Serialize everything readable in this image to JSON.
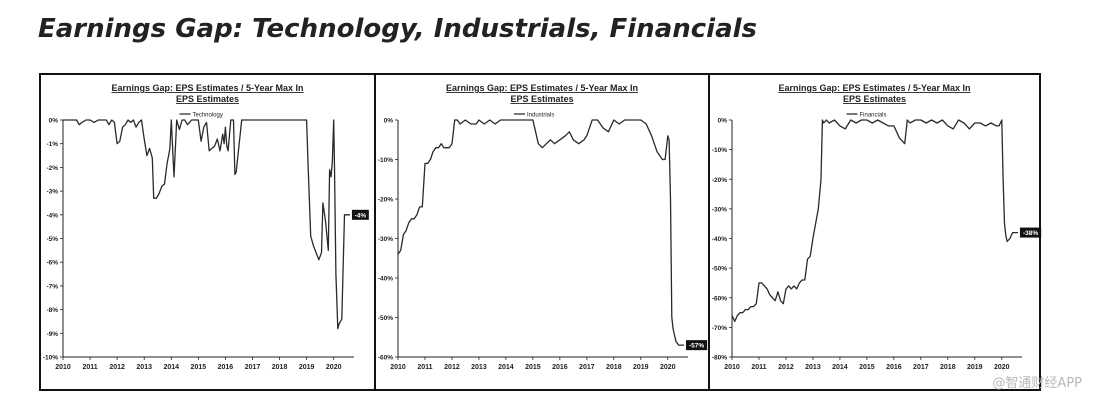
{
  "page": {
    "title": "Earnings Gap: Technology, Industrials, Financials",
    "watermark": "@智通财经APP"
  },
  "chart_data": [
    {
      "type": "line",
      "title": "Earnings Gap: EPS Estimates / 5-Year Max In EPS Estimates",
      "legend": "Technology",
      "legend_placement": "top-center",
      "end_label": "-4%",
      "grid": false,
      "xlim": [
        2010,
        2020.75
      ],
      "ylim": [
        -10,
        0
      ],
      "xticks": [
        "2010",
        "2011",
        "2012",
        "2013",
        "2014",
        "2015",
        "2016",
        "2017",
        "2018",
        "2019",
        "2020"
      ],
      "yticks": [
        "0%",
        "-1%",
        "-2%",
        "-3%",
        "-4%",
        "-5%",
        "-6%",
        "-7%",
        "-8%",
        "-9%",
        "-10%"
      ],
      "series": [
        {
          "name": "Technology",
          "x": [
            2010,
            2010.5,
            2010.6,
            2010.7,
            2010.85,
            2011,
            2011.15,
            2011.3,
            2011.5,
            2011.6,
            2011.7,
            2011.8,
            2011.9,
            2012,
            2012.1,
            2012.2,
            2012.3,
            2012.4,
            2012.5,
            2012.6,
            2012.7,
            2012.8,
            2012.9,
            2013,
            2013.1,
            2013.2,
            2013.3,
            2013.35,
            2013.45,
            2013.55,
            2013.65,
            2013.75,
            2013.85,
            2013.9,
            2013.95,
            2014,
            2014.1,
            2014.2,
            2014.3,
            2014.4,
            2014.5,
            2014.6,
            2014.75,
            2014.9,
            2015,
            2015.1,
            2015.2,
            2015.3,
            2015.4,
            2015.5,
            2015.6,
            2015.7,
            2015.8,
            2015.9,
            2015.95,
            2016,
            2016.05,
            2016.1,
            2016.2,
            2016.3,
            2016.35,
            2016.4,
            2016.6,
            2016.8,
            2017,
            2017.3,
            2017.6,
            2017.9,
            2018,
            2018.2,
            2018.4,
            2018.6,
            2018.8,
            2019,
            2019.05,
            2019.15,
            2019.25,
            2019.35,
            2019.45,
            2019.55,
            2019.6,
            2019.7,
            2019.8,
            2019.85,
            2019.9,
            2019.95,
            2020,
            2020.03,
            2020.08,
            2020.15,
            2020.2,
            2020.3,
            2020.4,
            2020.5,
            2020.6
          ],
          "values": [
            0,
            0,
            -0.2,
            -0.1,
            0,
            0,
            -0.1,
            0,
            0,
            0,
            -0.2,
            0,
            -0.1,
            -1.0,
            -0.9,
            -0.3,
            -0.2,
            0,
            -0.1,
            0,
            -0.3,
            -0.1,
            0,
            -0.8,
            -1.5,
            -1.2,
            -1.6,
            -3.3,
            -3.3,
            -3.1,
            -2.8,
            -2.7,
            -1.8,
            -1.5,
            -1.2,
            0,
            -2.4,
            0,
            -0.4,
            0,
            0,
            -0.2,
            0,
            0,
            0,
            -0.9,
            -0.3,
            -0.1,
            -1.3,
            -1.2,
            -1.1,
            -0.8,
            -1.3,
            -0.6,
            -1.0,
            -0.3,
            -1.1,
            -1.3,
            0,
            0,
            -2.3,
            -2.2,
            0,
            0,
            0,
            0,
            0,
            0,
            0,
            0,
            0,
            0,
            0,
            0,
            -1.8,
            -4.9,
            -5.3,
            -5.6,
            -5.9,
            -5.6,
            -3.5,
            -4.3,
            -5.5,
            -2.1,
            -2.4,
            -1.8,
            0,
            -2.0,
            -6.5,
            -8.8,
            -8.6,
            -8.4,
            -4.0,
            -4.0,
            -4.0
          ]
        }
      ]
    },
    {
      "type": "line",
      "title": "Earnings Gap: EPS Estimates / 5-Year Max In EPS Estimates",
      "legend": "Industrials",
      "legend_placement": "top-center",
      "end_label": "-57%",
      "grid": false,
      "xlim": [
        2010,
        2020.75
      ],
      "ylim": [
        -60,
        0
      ],
      "xticks": [
        "2010",
        "2011",
        "2012",
        "2013",
        "2014",
        "2015",
        "2016",
        "2017",
        "2018",
        "2019",
        "2020"
      ],
      "yticks": [
        "0%",
        "-10%",
        "-20%",
        "-30%",
        "-40%",
        "-50%",
        "-60%"
      ],
      "series": [
        {
          "name": "Industrials",
          "x": [
            2010,
            2010.1,
            2010.2,
            2010.3,
            2010.4,
            2010.5,
            2010.6,
            2010.7,
            2010.8,
            2010.9,
            2011,
            2011.1,
            2011.2,
            2011.3,
            2011.4,
            2011.5,
            2011.6,
            2011.7,
            2011.8,
            2011.9,
            2012,
            2012.1,
            2012.2,
            2012.3,
            2012.5,
            2012.7,
            2012.9,
            2013,
            2013.2,
            2013.4,
            2013.6,
            2013.8,
            2014,
            2014.2,
            2014.4,
            2014.6,
            2014.8,
            2015,
            2015.1,
            2015.2,
            2015.35,
            2015.5,
            2015.65,
            2015.8,
            2016,
            2016.2,
            2016.35,
            2016.5,
            2016.7,
            2016.9,
            2017,
            2017.2,
            2017.4,
            2017.6,
            2017.8,
            2018,
            2018.2,
            2018.4,
            2018.6,
            2018.8,
            2019,
            2019.2,
            2019.4,
            2019.6,
            2019.8,
            2019.9,
            2020,
            2020.05,
            2020.1,
            2020.15,
            2020.2,
            2020.3,
            2020.4,
            2020.5,
            2020.6
          ],
          "values": [
            -34,
            -33,
            -29,
            -28,
            -26,
            -25,
            -25,
            -24,
            -22,
            -22,
            -11,
            -11,
            -10,
            -8,
            -7,
            -7,
            -6,
            -7,
            -7,
            -7,
            -6,
            0,
            0,
            -1,
            0,
            -1,
            -1,
            0,
            -1,
            0,
            -1,
            0,
            0,
            0,
            0,
            0,
            0,
            0,
            -3,
            -6,
            -7,
            -6,
            -5,
            -6,
            -5,
            -4,
            -3,
            -5,
            -6,
            -5,
            -4,
            0,
            0,
            -2,
            -3,
            0,
            -1,
            0,
            0,
            0,
            0,
            -1,
            -4,
            -8,
            -10,
            -10,
            -4,
            -5,
            -20,
            -50,
            -53,
            -56,
            -57,
            -57,
            -57
          ]
        }
      ]
    },
    {
      "type": "line",
      "title": "Earnings Gap: EPS Estimates / 5-Year Max In EPS Estimates",
      "legend": "Financials",
      "legend_placement": "top-center",
      "end_label": "-38%",
      "grid": false,
      "xlim": [
        2010,
        2020.75
      ],
      "ylim": [
        -80,
        0
      ],
      "xticks": [
        "2010",
        "2011",
        "2012",
        "2013",
        "2014",
        "2015",
        "2016",
        "2017",
        "2018",
        "2019",
        "2020"
      ],
      "yticks": [
        "0%",
        "-10%",
        "-20%",
        "-30%",
        "-40%",
        "-50%",
        "-60%",
        "-70%",
        "-80%"
      ],
      "series": [
        {
          "name": "Financials",
          "x": [
            2010,
            2010.1,
            2010.2,
            2010.3,
            2010.4,
            2010.5,
            2010.6,
            2010.7,
            2010.8,
            2010.9,
            2011,
            2011.1,
            2011.2,
            2011.3,
            2011.4,
            2011.5,
            2011.6,
            2011.7,
            2011.8,
            2011.9,
            2012,
            2012.1,
            2012.2,
            2012.3,
            2012.4,
            2012.5,
            2012.6,
            2012.7,
            2012.8,
            2012.9,
            2013,
            2013.1,
            2013.2,
            2013.3,
            2013.35,
            2013.4,
            2013.5,
            2013.6,
            2013.8,
            2014,
            2014.2,
            2014.4,
            2014.6,
            2014.8,
            2015,
            2015.2,
            2015.4,
            2015.6,
            2015.8,
            2016,
            2016.1,
            2016.2,
            2016.3,
            2016.4,
            2016.5,
            2016.6,
            2016.8,
            2017,
            2017.2,
            2017.4,
            2017.6,
            2017.8,
            2018,
            2018.2,
            2018.4,
            2018.6,
            2018.8,
            2019,
            2019.2,
            2019.4,
            2019.6,
            2019.8,
            2019.9,
            2020,
            2020.05,
            2020.1,
            2020.15,
            2020.2,
            2020.3,
            2020.4,
            2020.5,
            2020.6
          ],
          "values": [
            -66,
            -68,
            -66,
            -65,
            -65,
            -64,
            -64,
            -63,
            -63,
            -62,
            -55,
            -55,
            -56,
            -57,
            -59,
            -60,
            -61,
            -58,
            -61,
            -62,
            -57,
            -56,
            -57,
            -56,
            -57,
            -55,
            -54,
            -54,
            -47,
            -46,
            -40,
            -35,
            -30,
            -20,
            0,
            -1,
            0,
            -1,
            0,
            -2,
            -3,
            0,
            -1,
            0,
            0,
            -1,
            0,
            -1,
            -2,
            -2,
            -4,
            -6,
            -7,
            -8,
            0,
            -1,
            0,
            0,
            -1,
            0,
            -1,
            0,
            -2,
            -3,
            0,
            -1,
            -3,
            -1,
            -1,
            -2,
            -1,
            -2,
            -2,
            0,
            -20,
            -35,
            -39,
            -41,
            -40,
            -38,
            -38,
            -38
          ]
        }
      ]
    }
  ]
}
